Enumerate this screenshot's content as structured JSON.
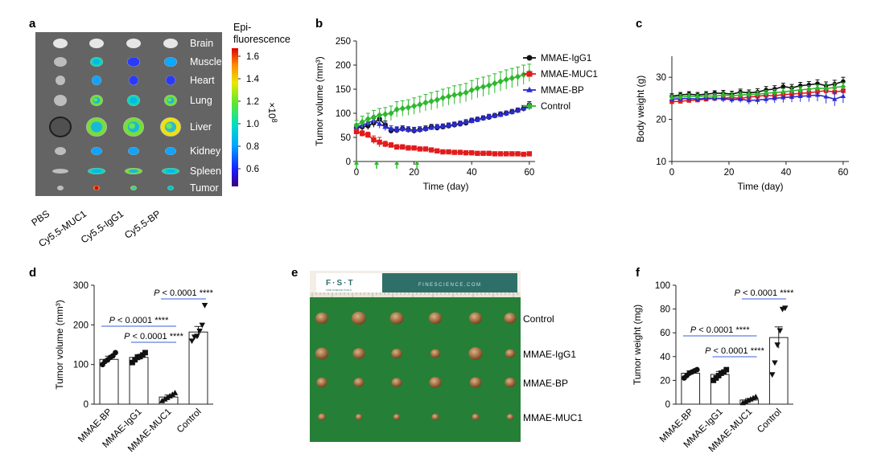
{
  "panels": {
    "a": {
      "letter": "a",
      "organs": [
        "Brain",
        "Muscle",
        "Heart",
        "Lung",
        "Liver",
        "Kidney",
        "Spleen",
        "Tumor"
      ],
      "groups": [
        "PBS",
        "Cy5.5-MUC1",
        "Cy5.5-IgG1",
        "Cy5.5-BP"
      ],
      "colorbar": {
        "title_line1": "Epi-",
        "title_line2": "fluorescence",
        "unit": "×10",
        "unit_exp": "8",
        "ticks": [
          "1.6",
          "1.4",
          "1.2",
          "1.0",
          "0.8",
          "0.6"
        ]
      },
      "intensity_level": {
        "Brain": [
          0.0,
          0.0,
          0.0,
          0.0
        ],
        "Muscle": [
          0.0,
          0.45,
          0.2,
          0.35
        ],
        "Heart": [
          0.0,
          0.3,
          0.15,
          0.2
        ],
        "Lung": [
          0.0,
          0.55,
          0.45,
          0.6
        ],
        "Liver": [
          0.0,
          0.5,
          0.55,
          0.65
        ],
        "Kidney": [
          0.0,
          0.25,
          0.3,
          0.3
        ],
        "Spleen": [
          0.0,
          0.45,
          0.5,
          0.45
        ],
        "Tumor": [
          0.0,
          0.9,
          0.6,
          0.4
        ]
      }
    },
    "e": {
      "letter": "e",
      "brand": "F·S·T",
      "brand_sub": "FINE SCIENCE TOOLS",
      "ruler_text": "FINESCIENCE.COM",
      "rows": [
        "Control",
        "MMAE-IgG1",
        "MMAE-BP",
        "MMAE-MUC1"
      ],
      "tumor_size_rel": [
        [
          0.8,
          1.0,
          0.9,
          0.85,
          0.85,
          0.75
        ],
        [
          0.85,
          0.75,
          0.6,
          0.5,
          0.95,
          0.5
        ],
        [
          0.6,
          0.55,
          0.55,
          0.75,
          0.7,
          0.6
        ],
        [
          0.3,
          0.2,
          0.2,
          0.25,
          0.25,
          0.2
        ]
      ]
    }
  },
  "chart_data": [
    {
      "panel": "b",
      "type": "line",
      "xlabel": "Time (day)",
      "ylabel": "Tumor volume (mm³)",
      "xlim": [
        0,
        62
      ],
      "ylim": [
        0,
        250
      ],
      "xticks": [
        0,
        20,
        40,
        60
      ],
      "yticks": [
        0,
        50,
        100,
        150,
        200,
        250
      ],
      "dosing_days": [
        0,
        7,
        14,
        21
      ],
      "legend_position": "top-right",
      "series": [
        {
          "name": "MMAE-IgG1",
          "color": "#111111",
          "marker": "circle",
          "x": [
            0,
            2,
            4,
            6,
            8,
            10,
            12,
            14,
            16,
            18,
            20,
            22,
            24,
            26,
            28,
            30,
            32,
            34,
            36,
            38,
            40,
            42,
            44,
            46,
            48,
            50,
            52,
            54,
            56,
            58,
            60
          ],
          "y": [
            70,
            72,
            74,
            80,
            88,
            76,
            64,
            65,
            68,
            66,
            64,
            66,
            68,
            72,
            70,
            72,
            74,
            76,
            78,
            80,
            85,
            87,
            90,
            92,
            95,
            98,
            100,
            103,
            106,
            110,
            117
          ],
          "err": [
            6,
            7,
            8,
            9,
            10,
            8,
            6,
            6,
            6,
            6,
            6,
            6,
            6,
            5,
            5,
            5,
            5,
            5,
            5,
            5,
            5,
            5,
            5,
            5,
            5,
            5,
            5,
            5,
            5,
            6,
            7
          ]
        },
        {
          "name": "MMAE-MUC1",
          "color": "#e21b1b",
          "marker": "square",
          "x": [
            0,
            2,
            4,
            6,
            8,
            10,
            12,
            14,
            16,
            18,
            20,
            22,
            24,
            26,
            28,
            30,
            32,
            34,
            36,
            38,
            40,
            42,
            44,
            46,
            48,
            50,
            52,
            54,
            56,
            58,
            60
          ],
          "y": [
            62,
            58,
            55,
            45,
            40,
            36,
            34,
            30,
            30,
            28,
            28,
            26,
            26,
            24,
            22,
            20,
            20,
            19,
            19,
            18,
            18,
            17,
            17,
            17,
            16,
            16,
            16,
            16,
            16,
            15,
            16
          ],
          "err": [
            6,
            6,
            6,
            8,
            10,
            6,
            5,
            5,
            5,
            5,
            4,
            4,
            4,
            3,
            3,
            3,
            3,
            3,
            3,
            2,
            2,
            2,
            2,
            2,
            2,
            2,
            2,
            2,
            2,
            2,
            2
          ]
        },
        {
          "name": "MMAE-BP",
          "color": "#2b2ad1",
          "marker": "triangle",
          "x": [
            0,
            2,
            4,
            6,
            8,
            10,
            12,
            14,
            16,
            18,
            20,
            22,
            24,
            26,
            28,
            30,
            32,
            34,
            36,
            38,
            40,
            42,
            44,
            46,
            48,
            50,
            52,
            54,
            56,
            58,
            60
          ],
          "y": [
            72,
            75,
            80,
            85,
            78,
            72,
            68,
            66,
            68,
            66,
            65,
            66,
            68,
            70,
            72,
            73,
            75,
            77,
            79,
            82,
            84,
            87,
            90,
            93,
            95,
            97,
            100,
            103,
            106,
            110,
            114
          ],
          "err": [
            6,
            7,
            8,
            9,
            9,
            8,
            6,
            6,
            6,
            6,
            6,
            6,
            6,
            5,
            5,
            5,
            5,
            5,
            5,
            5,
            5,
            5,
            5,
            5,
            5,
            5,
            5,
            5,
            5,
            6,
            7
          ]
        },
        {
          "name": "Control",
          "color": "#2eb82e",
          "marker": "diamond",
          "x": [
            0,
            2,
            4,
            6,
            8,
            10,
            12,
            14,
            16,
            18,
            20,
            22,
            24,
            26,
            28,
            30,
            32,
            34,
            36,
            38,
            40,
            42,
            44,
            46,
            48,
            50,
            52,
            54,
            56,
            58,
            60
          ],
          "y": [
            75,
            82,
            88,
            92,
            96,
            98,
            100,
            108,
            110,
            112,
            115,
            118,
            122,
            125,
            128,
            132,
            135,
            138,
            140,
            143,
            148,
            152,
            155,
            158,
            162,
            166,
            170,
            173,
            176,
            180,
            184
          ],
          "err": [
            10,
            12,
            12,
            14,
            14,
            14,
            15,
            16,
            16,
            16,
            17,
            17,
            17,
            18,
            18,
            18,
            18,
            19,
            19,
            19,
            20,
            20,
            20,
            20,
            20,
            20,
            20,
            20,
            20,
            20,
            18
          ]
        }
      ]
    },
    {
      "panel": "c",
      "type": "line",
      "xlabel": "Time (day)",
      "ylabel": "Body weight (g)",
      "xlim": [
        0,
        62
      ],
      "ylim": [
        10,
        35
      ],
      "xticks": [
        0,
        20,
        40,
        60
      ],
      "yticks": [
        10,
        20,
        30
      ],
      "series": [
        {
          "name": "MMAE-IgG1",
          "color": "#111111",
          "x": [
            0,
            3,
            6,
            9,
            12,
            15,
            18,
            21,
            24,
            27,
            30,
            33,
            36,
            39,
            42,
            45,
            48,
            51,
            54,
            57,
            60
          ],
          "y": [
            25.5,
            25.8,
            26.0,
            25.8,
            26.0,
            26.2,
            26.2,
            26.0,
            26.5,
            26.3,
            26.5,
            27,
            27.2,
            27.8,
            27.5,
            28,
            28.2,
            28.5,
            28,
            28.4,
            29.0
          ],
          "err": [
            0.6,
            0.6,
            0.6,
            0.6,
            0.6,
            0.6,
            0.7,
            0.7,
            0.7,
            0.7,
            0.8,
            0.8,
            0.8,
            0.8,
            0.8,
            0.8,
            0.8,
            0.9,
            0.9,
            0.9,
            1.0
          ]
        },
        {
          "name": "MMAE-MUC1",
          "color": "#e21b1b",
          "x": [
            0,
            3,
            6,
            9,
            12,
            15,
            18,
            21,
            24,
            27,
            30,
            33,
            36,
            39,
            42,
            45,
            48,
            51,
            54,
            57,
            60
          ],
          "y": [
            24.2,
            24.3,
            24.5,
            24.6,
            24.8,
            25.0,
            25.0,
            25.2,
            25.0,
            25.3,
            25.5,
            25.7,
            25.6,
            25.9,
            26,
            26.2,
            26.3,
            26.6,
            26.8,
            26.5,
            26.8
          ],
          "err": [
            0.5,
            0.5,
            0.5,
            0.5,
            0.5,
            0.6,
            0.6,
            0.6,
            0.6,
            0.6,
            0.6,
            0.6,
            0.6,
            0.6,
            0.7,
            0.7,
            0.7,
            0.7,
            0.8,
            0.8,
            0.8
          ]
        },
        {
          "name": "MMAE-BP",
          "color": "#2b2ad1",
          "x": [
            0,
            3,
            6,
            9,
            12,
            15,
            18,
            21,
            24,
            27,
            30,
            33,
            36,
            39,
            42,
            45,
            48,
            51,
            54,
            57,
            60
          ],
          "y": [
            24.8,
            24.9,
            25.0,
            24.8,
            25.1,
            25.0,
            24.9,
            24.7,
            24.8,
            24.5,
            24.6,
            24.8,
            25.0,
            25.2,
            25.3,
            25.5,
            25.6,
            25.8,
            25.4,
            24.8,
            25.5
          ],
          "err": [
            0.6,
            0.6,
            0.6,
            0.7,
            0.7,
            0.7,
            0.8,
            0.8,
            0.8,
            0.9,
            1.0,
            1.0,
            1.1,
            1.2,
            1.2,
            1.3,
            1.4,
            1.5,
            1.6,
            1.6,
            1.6
          ]
        },
        {
          "name": "Control",
          "color": "#2eb82e",
          "x": [
            0,
            3,
            6,
            9,
            12,
            15,
            18,
            21,
            24,
            27,
            30,
            33,
            36,
            39,
            42,
            45,
            48,
            51,
            54,
            57,
            60
          ],
          "y": [
            25.2,
            25.3,
            25.5,
            25.4,
            25.6,
            25.5,
            25.8,
            25.6,
            25.8,
            25.9,
            26,
            26.2,
            26.4,
            26.5,
            26.8,
            27,
            27.2,
            27.4,
            27.3,
            27.6,
            27.8
          ],
          "err": [
            0.6,
            0.6,
            0.6,
            0.6,
            0.6,
            0.6,
            0.6,
            0.7,
            0.7,
            0.7,
            0.7,
            0.7,
            0.7,
            0.8,
            0.8,
            0.8,
            0.8,
            0.8,
            0.9,
            0.9,
            0.9
          ]
        }
      ]
    },
    {
      "panel": "d",
      "type": "bar",
      "ylabel": "Tumor volume (mm³)",
      "ylim": [
        0,
        300
      ],
      "yticks": [
        0,
        100,
        200,
        300
      ],
      "categories": [
        "MMAE-BP",
        "MMAE-IgG1",
        "MMAE-MUC1",
        "Control"
      ],
      "values": [
        113,
        118,
        18,
        182
      ],
      "err": [
        8,
        7,
        5,
        14
      ],
      "markers": [
        "circle",
        "square",
        "triangle-up",
        "triangle-down"
      ],
      "points": [
        [
          100,
          108,
          112,
          118,
          122,
          130
        ],
        [
          105,
          112,
          118,
          120,
          124,
          130
        ],
        [
          8,
          12,
          16,
          20,
          24,
          28
        ],
        [
          160,
          170,
          172,
          185,
          200,
          250
        ]
      ],
      "annotations": [
        {
          "from": 0,
          "to": 2,
          "text": "P < 0.0001",
          "stars": "****",
          "level": 2
        },
        {
          "from": 1,
          "to": 2,
          "text": "P < 0.0001",
          "stars": "****",
          "level": 1
        },
        {
          "from": 2,
          "to": 3,
          "text": "P < 0.0001",
          "stars": "****",
          "level": 3
        }
      ]
    },
    {
      "panel": "f",
      "type": "bar",
      "ylabel": "Tumor weight (mg)",
      "ylim": [
        0,
        100
      ],
      "yticks": [
        0,
        20,
        40,
        60,
        80,
        100
      ],
      "categories": [
        "MMAE-BP",
        "MMAE-IgG1",
        "MMAE-MUC1",
        "Control"
      ],
      "values": [
        26,
        25,
        3.5,
        56
      ],
      "err": [
        2,
        2.5,
        1.2,
        9
      ],
      "markers": [
        "circle",
        "square",
        "triangle-up",
        "triangle-down"
      ],
      "points": [
        [
          22,
          24,
          26,
          27,
          28,
          29
        ],
        [
          20,
          22,
          24,
          26,
          27,
          29
        ],
        [
          1,
          2,
          3,
          4,
          5,
          6
        ],
        [
          25,
          35,
          50,
          62,
          80,
          81
        ]
      ],
      "annotations": [
        {
          "from": 0,
          "to": 2,
          "text": "P < 0.0001",
          "stars": "****",
          "level": 2
        },
        {
          "from": 1,
          "to": 2,
          "text": "P < 0.0001",
          "stars": "****",
          "level": 1
        },
        {
          "from": 2,
          "to": 3,
          "text": "P < 0.0001",
          "stars": "****",
          "level": 3
        }
      ]
    }
  ]
}
